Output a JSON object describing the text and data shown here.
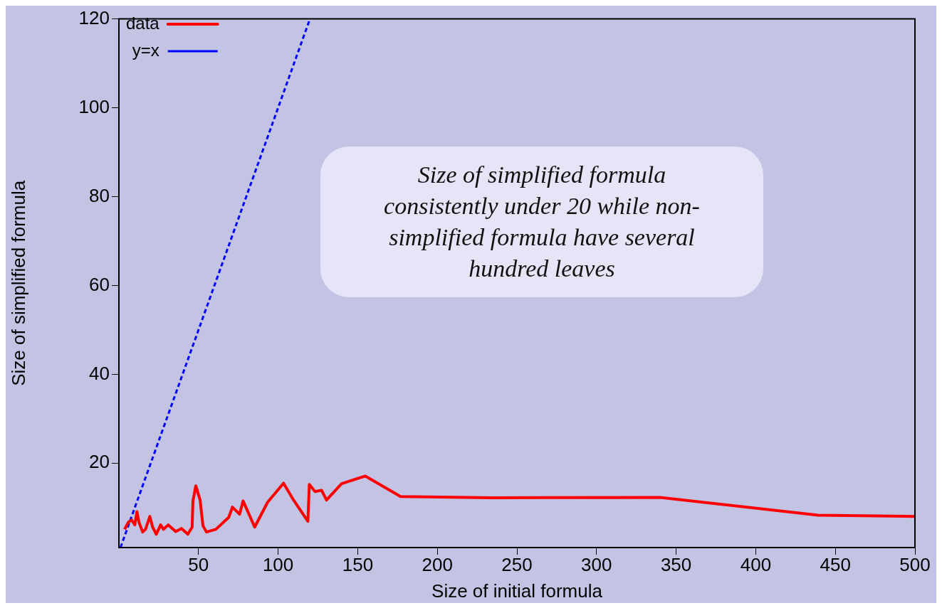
{
  "chart_data": {
    "type": "line",
    "xlabel": "Size of initial formula",
    "ylabel": "Size of simplified formula",
    "xlim": [
      0,
      500
    ],
    "ylim": [
      1,
      120
    ],
    "xticks": [
      50,
      100,
      150,
      200,
      250,
      300,
      350,
      400,
      450,
      500
    ],
    "yticks": [
      20,
      40,
      60,
      80,
      100,
      120
    ],
    "grid": false,
    "legend": "top left",
    "annotations": [
      "Size of simplified formula consistently under 20 while non-simplified formula have several hundred leaves"
    ],
    "series": [
      {
        "name": "data",
        "color": "#ff0000",
        "line_style": "solid",
        "x": [
          3.6,
          5.9,
          8,
          10,
          11.3,
          12.6,
          14.9,
          16.7,
          19.4,
          21.2,
          23.5,
          26.2,
          28,
          31,
          35.7,
          39.3,
          43.3,
          46,
          46.5,
          48.3,
          51,
          52.8,
          55,
          60.9,
          69,
          71.3,
          75.8,
          78,
          85.3,
          93.4,
          103.4,
          109.7,
          118.7,
          119.6,
          123.2,
          127.3,
          130.4,
          139.9,
          154.8,
          176.9,
          234.7,
          339.9,
          439.2,
          500
        ],
        "values": [
          5.1,
          6.7,
          7.2,
          6.1,
          9.1,
          6.7,
          4.5,
          5.1,
          8,
          5.6,
          4,
          6.1,
          5.1,
          6.1,
          4.6,
          5.3,
          4,
          5.6,
          11.5,
          14.9,
          11.7,
          5.9,
          4.5,
          5.1,
          7.8,
          10.1,
          8.5,
          11.5,
          5.6,
          11.2,
          15.5,
          11.7,
          6.9,
          15.2,
          13.6,
          13.9,
          11.7,
          15.4,
          17.1,
          12.5,
          12.2,
          12.3,
          8.3,
          8
        ]
      },
      {
        "name": "y=x",
        "color": "#0000ff",
        "line_style": "dashed",
        "x": [
          1,
          120
        ],
        "values": [
          1,
          120
        ]
      }
    ]
  }
}
